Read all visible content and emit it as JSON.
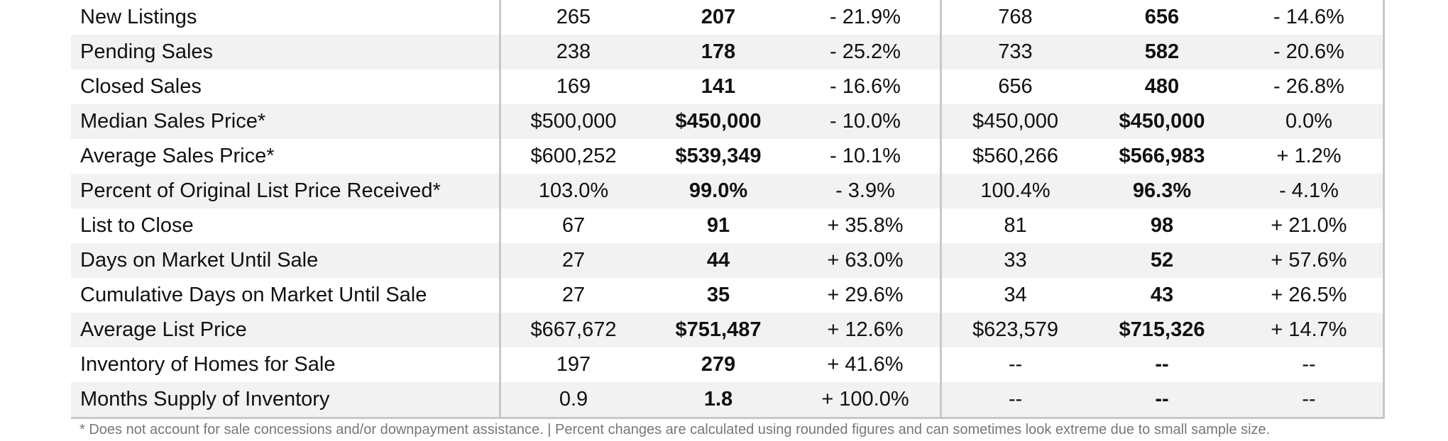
{
  "table": {
    "rows": [
      {
        "metric": "New Listings",
        "v1": "265",
        "v2": "207",
        "v3": "- 21.9%",
        "v4": "768",
        "v5": "656",
        "v6": "- 14.6%"
      },
      {
        "metric": "Pending Sales",
        "v1": "238",
        "v2": "178",
        "v3": "- 25.2%",
        "v4": "733",
        "v5": "582",
        "v6": "- 20.6%"
      },
      {
        "metric": "Closed Sales",
        "v1": "169",
        "v2": "141",
        "v3": "- 16.6%",
        "v4": "656",
        "v5": "480",
        "v6": "- 26.8%"
      },
      {
        "metric": "Median Sales Price*",
        "v1": "$500,000",
        "v2": "$450,000",
        "v3": "- 10.0%",
        "v4": "$450,000",
        "v5": "$450,000",
        "v6": "0.0%"
      },
      {
        "metric": "Average Sales Price*",
        "v1": "$600,252",
        "v2": "$539,349",
        "v3": "- 10.1%",
        "v4": "$560,266",
        "v5": "$566,983",
        "v6": "+ 1.2%"
      },
      {
        "metric": "Percent of Original List Price Received*",
        "v1": "103.0%",
        "v2": "99.0%",
        "v3": "- 3.9%",
        "v4": "100.4%",
        "v5": "96.3%",
        "v6": "- 4.1%"
      },
      {
        "metric": "List to Close",
        "v1": "67",
        "v2": "91",
        "v3": "+ 35.8%",
        "v4": "81",
        "v5": "98",
        "v6": "+ 21.0%"
      },
      {
        "metric": "Days on Market Until Sale",
        "v1": "27",
        "v2": "44",
        "v3": "+ 63.0%",
        "v4": "33",
        "v5": "52",
        "v6": "+ 57.6%"
      },
      {
        "metric": "Cumulative Days on Market Until Sale",
        "v1": "27",
        "v2": "35",
        "v3": "+ 29.6%",
        "v4": "34",
        "v5": "43",
        "v6": "+ 26.5%"
      },
      {
        "metric": "Average List Price",
        "v1": "$667,672",
        "v2": "$751,487",
        "v3": "+ 12.6%",
        "v4": "$623,579",
        "v5": "$715,326",
        "v6": "+ 14.7%"
      },
      {
        "metric": "Inventory of Homes for Sale",
        "v1": "197",
        "v2": "279",
        "v3": "+ 41.6%",
        "v4": "--",
        "v5": "--",
        "v6": "--"
      },
      {
        "metric": "Months Supply of Inventory",
        "v1": "0.9",
        "v2": "1.8",
        "v3": "+ 100.0%",
        "v4": "--",
        "v5": "--",
        "v6": "--"
      }
    ]
  },
  "footnote": "* Does not account for sale concessions and/or downpayment assistance.  |  Percent changes are calculated using rounded figures and can sometimes look extreme due to small sample size."
}
